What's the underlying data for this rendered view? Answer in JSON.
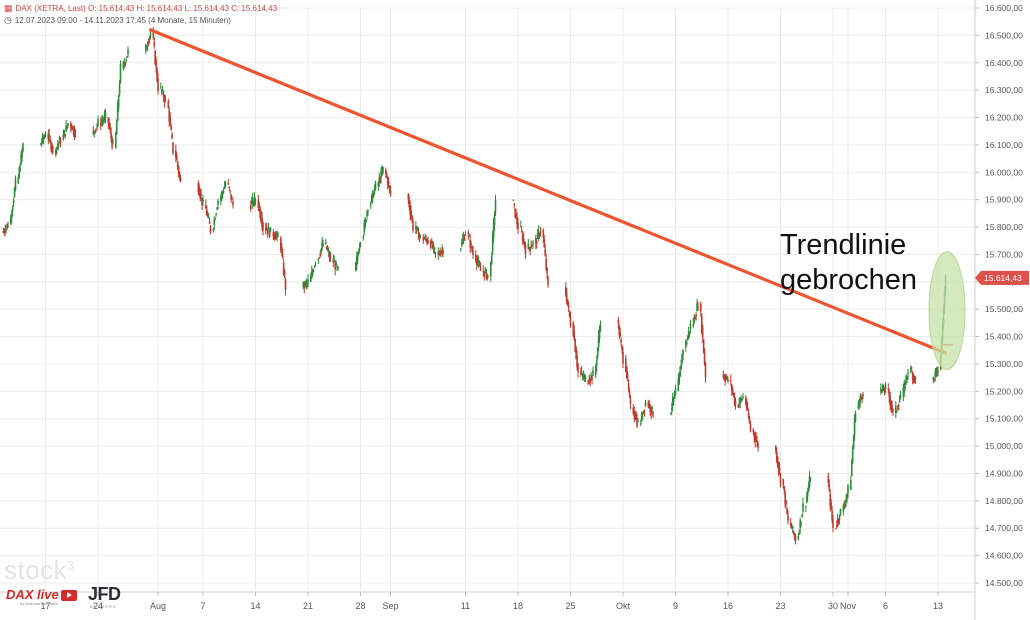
{
  "header": {
    "ticker_line": "DAX (XETRA, Last)  O: 15.614,43  H: 15.614,43  L: 15.614,43  C: 15.614,43",
    "range_line": "12.07.2023 09:00 - 14.11.2023 17:45    (4 Monate, 15 Minuten)"
  },
  "annotation": {
    "text": "Trendlinie\ngebrochen",
    "highlight_color": "#c5e3a8"
  },
  "logos": {
    "stock": "stock",
    "stock_sup": "3",
    "dax": "DAX live",
    "dax_sub": "by Andreas Bernstein",
    "jfd": "JFD",
    "jfd_sub": "BROKERS"
  },
  "colors": {
    "up": "#2e8b3a",
    "down": "#c0392b",
    "trendline": "#f0532f",
    "price_tag": "#e0504a",
    "grid": "#ececec"
  },
  "chart_data": {
    "type": "candlestick",
    "title": "DAX (XETRA, Last)",
    "period": "12.07.2023 09:00 - 14.11.2023 17:45",
    "interval": "15 Minuten",
    "y_axis_side": "right",
    "ylim": [
      14500,
      16600
    ],
    "yticks": [
      "16.600,00",
      "16.500,00",
      "16.400,00",
      "16.300,00",
      "16.200,00",
      "16.100,00",
      "16.000,00",
      "15.900,00",
      "15.800,00",
      "15.700,00",
      "15.600,00",
      "15.500,00",
      "15.400,00",
      "15.300,00",
      "15.200,00",
      "15.100,00",
      "15.000,00",
      "14.900,00",
      "14.800,00",
      "14.700,00",
      "14.600,00",
      "14.500,00"
    ],
    "ytick_values": [
      16600,
      16500,
      16400,
      16300,
      16200,
      16100,
      16000,
      15900,
      15800,
      15700,
      15600,
      15500,
      15400,
      15300,
      15200,
      15100,
      15000,
      14900,
      14800,
      14700,
      14600,
      14500
    ],
    "xlim": [
      "2023-07-12",
      "2023-11-15"
    ],
    "xticks": [
      {
        "label": "17",
        "date": "2023-07-17"
      },
      {
        "label": "24",
        "date": "2023-07-24"
      },
      {
        "label": "Aug",
        "date": "2023-08-01"
      },
      {
        "label": "7",
        "date": "2023-08-07"
      },
      {
        "label": "14",
        "date": "2023-08-14"
      },
      {
        "label": "21",
        "date": "2023-08-21"
      },
      {
        "label": "28",
        "date": "2023-08-28"
      },
      {
        "label": "Sep",
        "date": "2023-09-01"
      },
      {
        "label": "11",
        "date": "2023-09-11"
      },
      {
        "label": "18",
        "date": "2023-09-18"
      },
      {
        "label": "25",
        "date": "2023-09-25"
      },
      {
        "label": "Okt",
        "date": "2023-10-02"
      },
      {
        "label": "9",
        "date": "2023-10-09"
      },
      {
        "label": "16",
        "date": "2023-10-16"
      },
      {
        "label": "23",
        "date": "2023-10-23"
      },
      {
        "label": "30",
        "date": "2023-10-30"
      },
      {
        "label": "Nov",
        "date": "2023-11-01"
      },
      {
        "label": "6",
        "date": "2023-11-06"
      },
      {
        "label": "13",
        "date": "2023-11-13"
      }
    ],
    "grid": true,
    "last_price": 15614.43,
    "last_price_label": "15.614,43",
    "trendline": {
      "from": {
        "date": "2023-07-31",
        "value": 16520
      },
      "to": {
        "date": "2023-11-14",
        "value": 15340
      }
    },
    "breakout_marker": {
      "from": {
        "date": "2023-11-14",
        "value": 15370
      },
      "to": {
        "date": "2023-11-15",
        "value": 15370
      }
    },
    "highlight_ellipse": {
      "center": {
        "date": "2023-11-14",
        "value": 15495
      },
      "x_radius_days": 2.4,
      "y_radius": 215
    },
    "series": [
      {
        "values": [
          [
            "2023-07-12",
            15810
          ],
          [
            "2023-07-13",
            15960
          ],
          [
            "2023-07-14",
            16100
          ],
          [
            "2023-07-17",
            16140
          ],
          [
            "2023-07-18",
            16080
          ],
          [
            "2023-07-19",
            16120
          ],
          [
            "2023-07-20",
            16180
          ],
          [
            "2023-07-21",
            16140
          ],
          [
            "2023-07-24",
            16180
          ],
          [
            "2023-07-25",
            16200
          ],
          [
            "2023-07-26",
            16090
          ],
          [
            "2023-07-27",
            16380
          ],
          [
            "2023-07-28",
            16440
          ],
          [
            "2023-07-31",
            16510
          ],
          [
            "2023-08-01",
            16310
          ],
          [
            "2023-08-02",
            16260
          ],
          [
            "2023-08-03",
            16080
          ],
          [
            "2023-08-04",
            15960
          ],
          [
            "2023-08-07",
            15880
          ],
          [
            "2023-08-08",
            15790
          ],
          [
            "2023-08-09",
            15900
          ],
          [
            "2023-08-10",
            15960
          ],
          [
            "2023-08-11",
            15880
          ],
          [
            "2023-08-14",
            15900
          ],
          [
            "2023-08-15",
            15800
          ],
          [
            "2023-08-16",
            15780
          ],
          [
            "2023-08-17",
            15760
          ],
          [
            "2023-08-18",
            15580
          ],
          [
            "2023-08-21",
            15600
          ],
          [
            "2023-08-22",
            15680
          ],
          [
            "2023-08-23",
            15740
          ],
          [
            "2023-08-24",
            15680
          ],
          [
            "2023-08-25",
            15640
          ],
          [
            "2023-08-28",
            15760
          ],
          [
            "2023-08-29",
            15880
          ],
          [
            "2023-08-30",
            15950
          ],
          [
            "2023-08-31",
            16010
          ],
          [
            "2023-09-01",
            15920
          ],
          [
            "2023-09-04",
            15800
          ],
          [
            "2023-09-05",
            15760
          ],
          [
            "2023-09-06",
            15750
          ],
          [
            "2023-09-07",
            15700
          ],
          [
            "2023-09-08",
            15720
          ],
          [
            "2023-09-11",
            15780
          ],
          [
            "2023-09-12",
            15700
          ],
          [
            "2023-09-13",
            15640
          ],
          [
            "2023-09-14",
            15620
          ],
          [
            "2023-09-15",
            15900
          ],
          [
            "2023-09-18",
            15800
          ],
          [
            "2023-09-19",
            15720
          ],
          [
            "2023-09-20",
            15740
          ],
          [
            "2023-09-21",
            15790
          ],
          [
            "2023-09-22",
            15580
          ],
          [
            "2023-09-25",
            15450
          ],
          [
            "2023-09-26",
            15270
          ],
          [
            "2023-09-27",
            15240
          ],
          [
            "2023-09-28",
            15260
          ],
          [
            "2023-09-29",
            15460
          ],
          [
            "2023-10-02",
            15320
          ],
          [
            "2023-10-03",
            15140
          ],
          [
            "2023-10-04",
            15080
          ],
          [
            "2023-10-05",
            15160
          ],
          [
            "2023-10-06",
            15120
          ],
          [
            "2023-10-09",
            15200
          ],
          [
            "2023-10-10",
            15360
          ],
          [
            "2023-10-11",
            15440
          ],
          [
            "2023-10-12",
            15520
          ],
          [
            "2023-10-13",
            15260
          ],
          [
            "2023-10-16",
            15240
          ],
          [
            "2023-10-17",
            15150
          ],
          [
            "2023-10-18",
            15180
          ],
          [
            "2023-10-19",
            15060
          ],
          [
            "2023-10-20",
            15000
          ],
          [
            "2023-10-23",
            14880
          ],
          [
            "2023-10-24",
            14720
          ],
          [
            "2023-10-25",
            14660
          ],
          [
            "2023-10-26",
            14780
          ],
          [
            "2023-10-27",
            14890
          ],
          [
            "2023-10-30",
            14700
          ],
          [
            "2023-10-31",
            14760
          ],
          [
            "2023-11-01",
            14840
          ],
          [
            "2023-11-02",
            15140
          ],
          [
            "2023-11-03",
            15200
          ],
          [
            "2023-11-06",
            15210
          ],
          [
            "2023-11-07",
            15120
          ],
          [
            "2023-11-08",
            15180
          ],
          [
            "2023-11-09",
            15280
          ],
          [
            "2023-11-10",
            15240
          ],
          [
            "2023-11-13",
            15280
          ],
          [
            "2023-11-14",
            15614
          ]
        ]
      }
    ]
  }
}
